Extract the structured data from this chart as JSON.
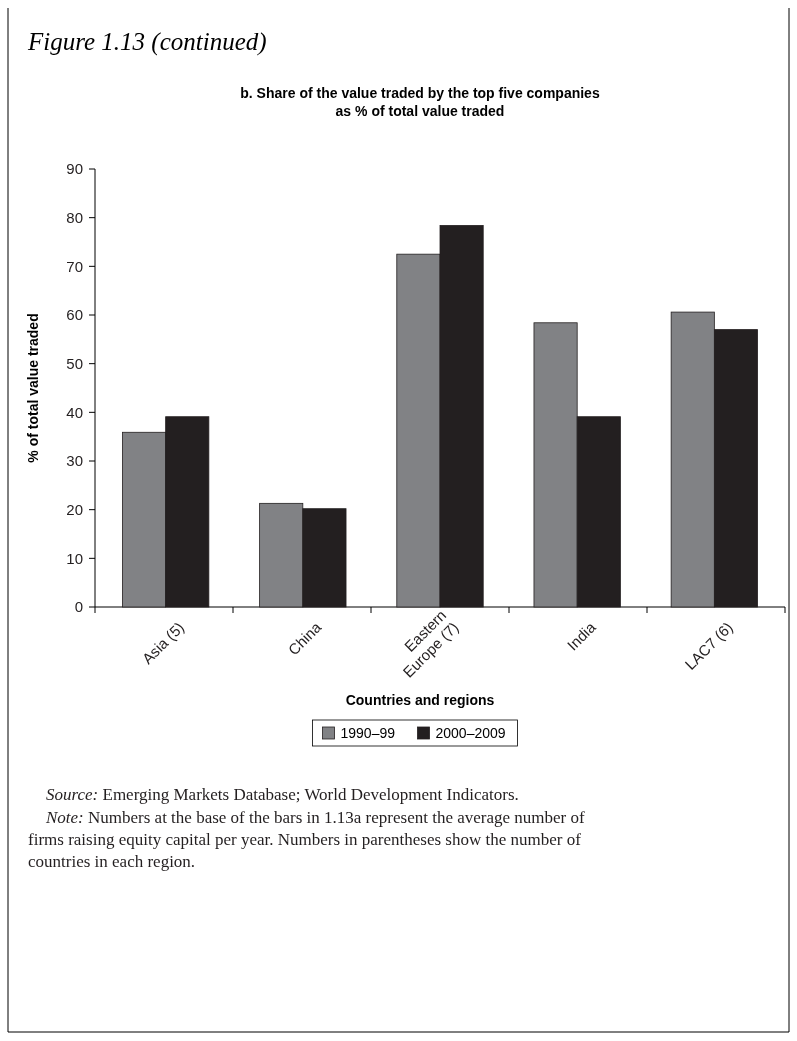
{
  "chart_data": {
    "type": "bar",
    "title": "Figure 1.13 (continued)",
    "subtitle": "b. Share of the value traded by the top five companies as % of total value traded",
    "xlabel": "Countries and regions",
    "ylabel": "% of total value traded",
    "categories": [
      "Asia (5)",
      "China",
      "Eastern Europe (7)",
      "India",
      "LAC7 (6)"
    ],
    "series": [
      {
        "name": "1990–99",
        "color": "#818285",
        "values": [
          35.9,
          21.3,
          72.5,
          58.4,
          60.6
        ]
      },
      {
        "name": "2000–2009",
        "color": "#231f20",
        "values": [
          39.1,
          20.2,
          78.4,
          39.1,
          57.0
        ]
      }
    ],
    "ylim": [
      0,
      90
    ],
    "yticks": [
      0,
      10,
      20,
      30,
      40,
      50,
      60,
      70,
      80,
      90
    ],
    "legend": "bottom",
    "grid": false,
    "annotations": [
      "Source: Emerging Markets Database; World Development Indicators.",
      "Note: Numbers at the base of the bars in 1.13a represent the average number of firms raising equity capital per year. Numbers in parentheses show the number of countries in each region."
    ]
  }
}
